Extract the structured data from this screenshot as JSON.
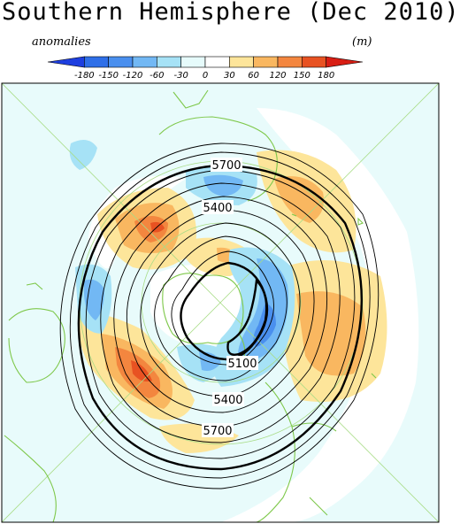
{
  "title": "Southern Hemisphere (Dec 2010)",
  "legend": {
    "left_label": "anomalies",
    "right_label": "(m)",
    "ticks": [
      "-180",
      "-150",
      "-120",
      "-60",
      "-30",
      "0",
      "30",
      "60",
      "120",
      "150",
      "180"
    ],
    "colors": [
      "#1e3fe0",
      "#2f6fe8",
      "#4a8fee",
      "#72b8f4",
      "#a6e2f6",
      "#e6fbfb",
      "#ffffff",
      "#fde59a",
      "#f9b760",
      "#f3863f",
      "#e85222",
      "#d81e14"
    ]
  },
  "contour_labels": {
    "c5700_top": "5700",
    "c5400_top": "5400",
    "c5100": "5100",
    "c5400_bottom": "5400",
    "c5700_bottom": "5700"
  },
  "colors": {
    "map_background": "#e8fbfb",
    "coastline": "#7ec84a",
    "grid": "#a8dc86",
    "contour": "#000000"
  }
}
